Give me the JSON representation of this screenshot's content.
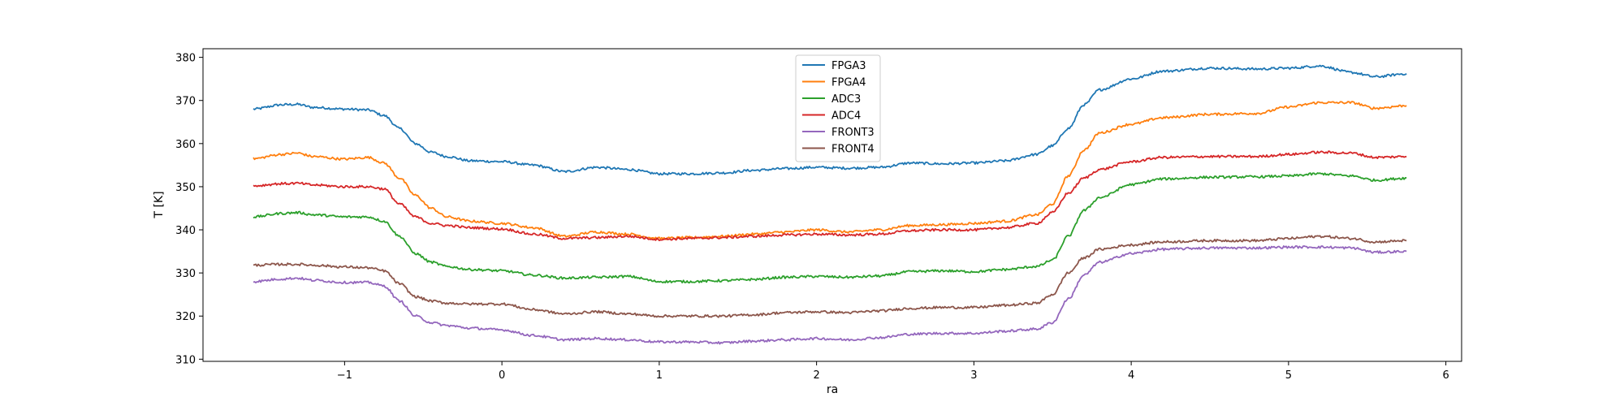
{
  "chart_data": {
    "type": "line",
    "title": "",
    "xlabel": "ra",
    "ylabel": "T [K]",
    "xlim": [
      -1.9,
      6.1
    ],
    "ylim": [
      309.5,
      382
    ],
    "xticks": [
      -1,
      0,
      1,
      2,
      3,
      4,
      5,
      6
    ],
    "xtick_labels": [
      "−1",
      "0",
      "1",
      "2",
      "3",
      "4",
      "5",
      "6"
    ],
    "yticks": [
      310,
      320,
      330,
      340,
      350,
      360,
      370,
      380
    ],
    "ytick_labels": [
      "310",
      "320",
      "330",
      "340",
      "350",
      "360",
      "370",
      "380"
    ],
    "grid": false,
    "legend_position": "top-center",
    "x": [
      -1.58,
      -1.4,
      -1.3,
      -1.2,
      -1.0,
      -0.85,
      -0.75,
      -0.65,
      -0.55,
      -0.45,
      -0.35,
      -0.2,
      0.0,
      0.2,
      0.4,
      0.6,
      0.8,
      1.0,
      1.2,
      1.4,
      1.6,
      1.8,
      2.0,
      2.2,
      2.4,
      2.6,
      2.8,
      3.0,
      3.2,
      3.4,
      3.5,
      3.6,
      3.7,
      3.8,
      4.0,
      4.2,
      4.5,
      4.8,
      5.0,
      5.2,
      5.4,
      5.55,
      5.75
    ],
    "series": [
      {
        "name": "FPGA3",
        "color": "#1f77b4",
        "values": [
          368.0,
          369.0,
          369.1,
          368.4,
          368.0,
          367.8,
          366.5,
          363.5,
          360.0,
          358.0,
          357.0,
          356.0,
          355.8,
          355.0,
          353.5,
          354.5,
          354.0,
          353.0,
          353.0,
          353.2,
          353.8,
          354.2,
          354.5,
          354.3,
          354.5,
          355.5,
          355.3,
          355.5,
          356.0,
          357.5,
          359.5,
          363.5,
          369.0,
          372.5,
          375.0,
          376.8,
          377.5,
          377.3,
          377.5,
          378.0,
          376.5,
          375.5,
          376.2
        ]
      },
      {
        "name": "FPGA4",
        "color": "#ff7f0e",
        "values": [
          356.5,
          357.5,
          357.8,
          357.0,
          356.4,
          356.8,
          355.5,
          352.0,
          348.0,
          345.0,
          343.0,
          342.0,
          341.5,
          340.5,
          338.5,
          339.5,
          339.0,
          338.0,
          338.2,
          338.5,
          339.0,
          339.5,
          340.0,
          339.5,
          340.0,
          341.0,
          341.2,
          341.5,
          342.0,
          343.5,
          346.0,
          352.5,
          358.5,
          362.5,
          364.5,
          366.0,
          366.8,
          367.0,
          368.5,
          369.5,
          369.5,
          368.2,
          368.8
        ]
      },
      {
        "name": "ADC3",
        "color": "#2ca02c",
        "values": [
          343.0,
          343.8,
          344.0,
          343.5,
          343.0,
          343.0,
          342.0,
          338.5,
          334.5,
          332.5,
          331.5,
          330.8,
          330.5,
          329.5,
          328.8,
          329.0,
          329.2,
          328.0,
          328.0,
          328.2,
          328.5,
          329.0,
          329.2,
          329.0,
          329.3,
          330.3,
          330.5,
          330.3,
          330.8,
          331.5,
          333.0,
          338.5,
          344.5,
          347.5,
          350.5,
          351.8,
          352.2,
          352.3,
          352.5,
          353.0,
          352.5,
          351.5,
          352.0
        ]
      },
      {
        "name": "ADC4",
        "color": "#d62728",
        "values": [
          350.2,
          350.7,
          350.8,
          350.4,
          350.0,
          350.0,
          349.5,
          346.0,
          343.0,
          341.5,
          341.0,
          340.5,
          340.2,
          339.0,
          338.0,
          338.2,
          338.5,
          337.8,
          338.0,
          338.2,
          338.5,
          338.8,
          339.0,
          338.8,
          339.0,
          339.8,
          340.0,
          340.0,
          340.5,
          341.5,
          344.0,
          348.5,
          352.0,
          354.0,
          355.8,
          356.8,
          357.0,
          357.0,
          357.5,
          358.0,
          357.8,
          356.8,
          357.0
        ]
      },
      {
        "name": "FRONT3",
        "color": "#9467bd",
        "values": [
          328.0,
          328.6,
          328.8,
          328.3,
          327.8,
          327.8,
          327.0,
          323.5,
          320.0,
          318.5,
          317.8,
          317.2,
          316.8,
          315.5,
          314.5,
          314.8,
          314.5,
          314.0,
          314.0,
          313.8,
          314.2,
          314.5,
          314.8,
          314.5,
          315.0,
          315.8,
          316.0,
          316.0,
          316.5,
          317.0,
          318.5,
          324.0,
          329.5,
          332.5,
          334.5,
          335.5,
          335.8,
          335.8,
          336.0,
          336.0,
          335.8,
          334.8,
          335.0
        ]
      },
      {
        "name": "FRONT4",
        "color": "#8c564b",
        "values": [
          331.8,
          332.0,
          332.0,
          331.8,
          331.4,
          331.2,
          330.5,
          327.5,
          324.5,
          323.5,
          323.0,
          322.8,
          322.8,
          321.5,
          320.5,
          321.0,
          320.5,
          320.0,
          320.0,
          320.0,
          320.3,
          320.8,
          321.0,
          320.8,
          321.2,
          321.8,
          322.0,
          322.0,
          322.5,
          323.0,
          325.0,
          330.0,
          333.5,
          335.5,
          336.5,
          337.2,
          337.5,
          337.5,
          338.0,
          338.5,
          338.0,
          337.2,
          337.5
        ]
      }
    ]
  }
}
